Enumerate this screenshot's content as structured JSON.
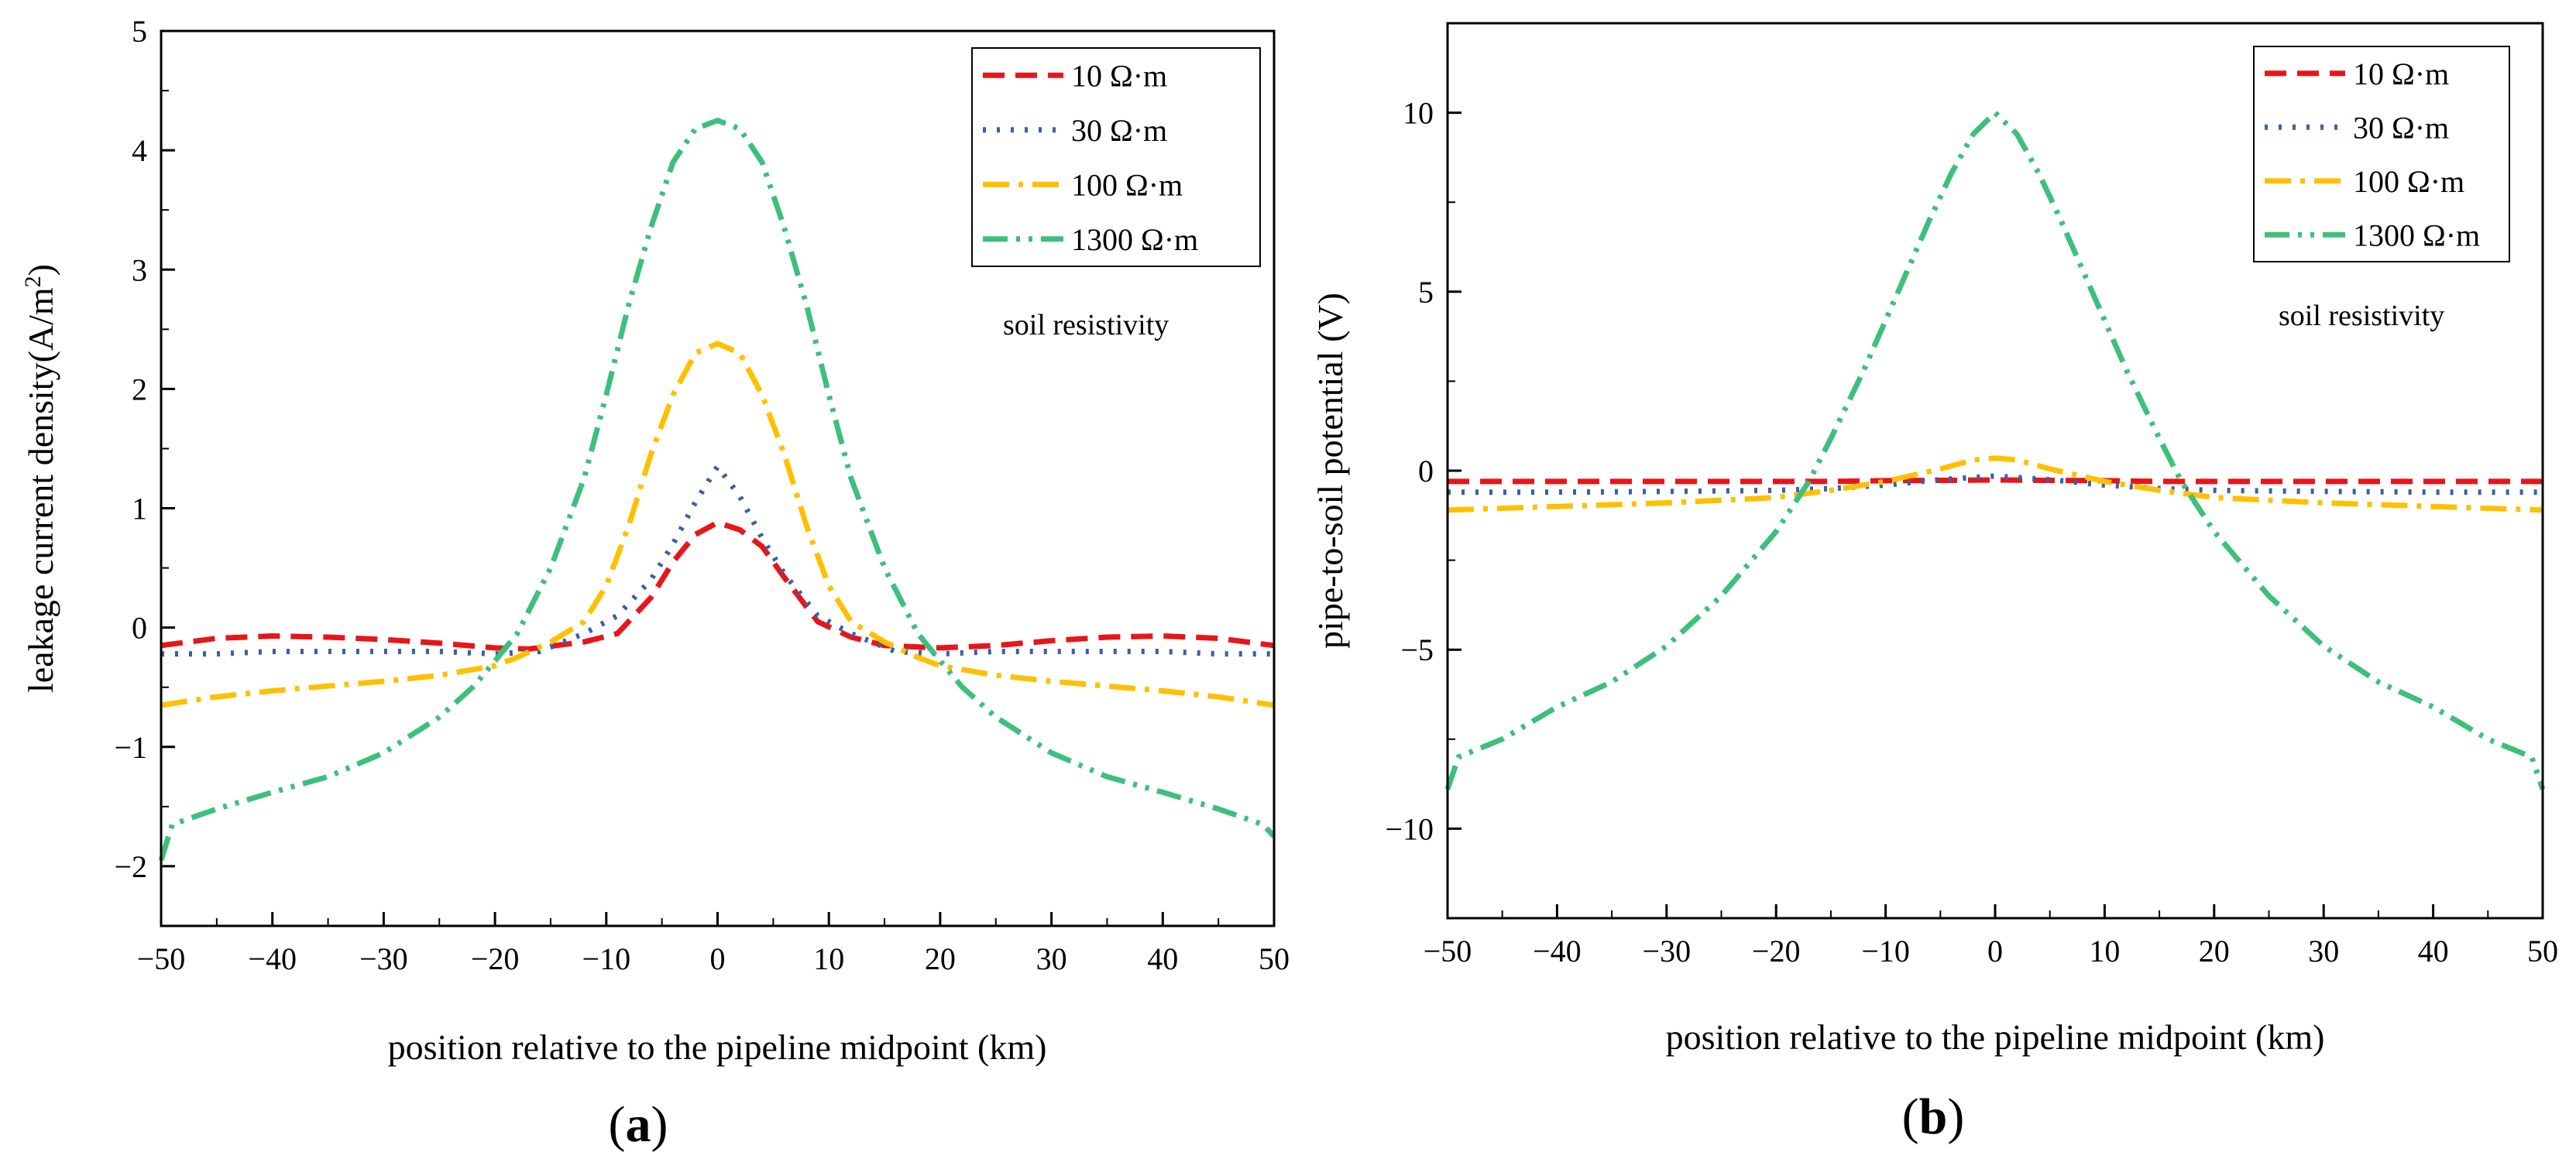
{
  "chart_data": [
    {
      "type": "line",
      "panel": "(a)",
      "panel_letter": "a",
      "xlabel": "position relative to the pipeline midpoint (km)",
      "ylabel_main": "leakage current density(A/m",
      "ylabel_sup": "2",
      "ylabel_end": ")",
      "xlim": [
        -50,
        50
      ],
      "ylim": [
        -2.5,
        5
      ],
      "xticks": [
        -50,
        -40,
        -30,
        -20,
        -10,
        0,
        10,
        20,
        30,
        40,
        50
      ],
      "yticks": [
        -2,
        -1,
        0,
        1,
        2,
        3,
        4,
        5
      ],
      "annotation": "soil resistivity",
      "legend_position": "top-right",
      "series": [
        {
          "name": "10 Ω·m",
          "color": "#e8151b",
          "dash": "dash",
          "x": [
            -50,
            -45,
            -40,
            -35,
            -30,
            -25,
            -20,
            -17,
            -12,
            -9,
            -6,
            -4,
            -2,
            0,
            2,
            4,
            6,
            9,
            12,
            15,
            20,
            25,
            30,
            35,
            40,
            45,
            50
          ],
          "y": [
            -0.15,
            -0.09,
            -0.07,
            -0.08,
            -0.1,
            -0.13,
            -0.17,
            -0.18,
            -0.12,
            -0.05,
            0.25,
            0.55,
            0.78,
            0.88,
            0.82,
            0.68,
            0.42,
            0.05,
            -0.08,
            -0.15,
            -0.17,
            -0.15,
            -0.11,
            -0.08,
            -0.07,
            -0.09,
            -0.15
          ]
        },
        {
          "name": "30 Ω·m",
          "color": "#3a5fa8",
          "dash": "dot",
          "x": [
            -50,
            -45,
            -40,
            -35,
            -30,
            -25,
            -20,
            -16,
            -12,
            -9,
            -6,
            -4,
            -2,
            0,
            2,
            4,
            6,
            9,
            12,
            16,
            20,
            25,
            30,
            35,
            40,
            45,
            50
          ],
          "y": [
            -0.22,
            -0.22,
            -0.2,
            -0.2,
            -0.2,
            -0.2,
            -0.22,
            -0.2,
            -0.05,
            0.1,
            0.4,
            0.7,
            1.05,
            1.35,
            1.1,
            0.75,
            0.45,
            0.1,
            -0.05,
            -0.2,
            -0.22,
            -0.2,
            -0.2,
            -0.2,
            -0.2,
            -0.22,
            -0.22
          ]
        },
        {
          "name": "100 Ω·m",
          "color": "#ffc000",
          "dash": "dashdot",
          "x": [
            -50,
            -45,
            -40,
            -35,
            -30,
            -25,
            -20,
            -18,
            -15,
            -12,
            -10,
            -8,
            -6,
            -4,
            -2,
            0,
            2,
            4,
            6,
            8,
            10,
            12,
            15,
            18,
            20,
            25,
            30,
            35,
            40,
            45,
            50
          ],
          "y": [
            -0.65,
            -0.58,
            -0.53,
            -0.49,
            -0.45,
            -0.4,
            -0.32,
            -0.25,
            -0.12,
            0.05,
            0.35,
            0.85,
            1.45,
            1.95,
            2.3,
            2.38,
            2.3,
            1.95,
            1.45,
            0.85,
            0.35,
            0.05,
            -0.12,
            -0.25,
            -0.32,
            -0.4,
            -0.45,
            -0.49,
            -0.53,
            -0.58,
            -0.65
          ]
        },
        {
          "name": "1300 Ω·m",
          "color": "#3dc07a",
          "dash": "dashdotdot",
          "x": [
            -50,
            -49,
            -45,
            -40,
            -35,
            -30,
            -25,
            -22,
            -20,
            -18,
            -15,
            -12,
            -10,
            -8,
            -6,
            -4,
            -2,
            0,
            2,
            4,
            6,
            8,
            10,
            12,
            15,
            18,
            20,
            22,
            25,
            30,
            35,
            40,
            45,
            49,
            50
          ],
          "y": [
            -1.95,
            -1.65,
            -1.52,
            -1.38,
            -1.25,
            -1.05,
            -0.75,
            -0.5,
            -0.28,
            -0.05,
            0.5,
            1.25,
            1.95,
            2.7,
            3.35,
            3.9,
            4.18,
            4.25,
            4.18,
            3.9,
            3.35,
            2.7,
            1.95,
            1.25,
            0.5,
            -0.05,
            -0.28,
            -0.5,
            -0.75,
            -1.05,
            -1.25,
            -1.38,
            -1.52,
            -1.65,
            -1.75
          ]
        }
      ]
    },
    {
      "type": "line",
      "panel": "(b)",
      "panel_letter": "b",
      "xlabel": "position relative to the pipeline midpoint (km)",
      "ylabel": "pipe-to-soil potential (V)",
      "xlim": [
        -50,
        50
      ],
      "ylim": [
        -12.5,
        12.5
      ],
      "xticks": [
        -50,
        -40,
        -30,
        -20,
        -10,
        0,
        10,
        20,
        30,
        40,
        50
      ],
      "yticks": [
        -10,
        -5,
        0,
        5,
        10
      ],
      "annotation": "soil resistivity",
      "legend_position": "top-right",
      "series": [
        {
          "name": "10 Ω·m",
          "color": "#e8151b",
          "dash": "dash",
          "x": [
            -50,
            -40,
            -30,
            -20,
            -15,
            -10,
            -5,
            0,
            5,
            10,
            15,
            20,
            30,
            40,
            50
          ],
          "y": [
            -0.3,
            -0.3,
            -0.3,
            -0.3,
            -0.3,
            -0.28,
            -0.27,
            -0.26,
            -0.27,
            -0.28,
            -0.3,
            -0.3,
            -0.3,
            -0.3,
            -0.3
          ]
        },
        {
          "name": "30 Ω·m",
          "color": "#3a5fa8",
          "dash": "dot",
          "x": [
            -50,
            -40,
            -30,
            -20,
            -15,
            -10,
            -5,
            0,
            5,
            10,
            15,
            20,
            30,
            40,
            50
          ],
          "y": [
            -0.6,
            -0.6,
            -0.58,
            -0.55,
            -0.5,
            -0.4,
            -0.25,
            -0.15,
            -0.25,
            -0.4,
            -0.5,
            -0.55,
            -0.58,
            -0.6,
            -0.6
          ]
        },
        {
          "name": "100 Ω·m",
          "color": "#ffc000",
          "dash": "dashdot",
          "x": [
            -50,
            -40,
            -30,
            -20,
            -15,
            -10,
            -5,
            -2,
            0,
            2,
            5,
            10,
            15,
            20,
            30,
            40,
            50
          ],
          "y": [
            -1.1,
            -1.0,
            -0.9,
            -0.75,
            -0.55,
            -0.3,
            0.05,
            0.3,
            0.35,
            0.3,
            0.05,
            -0.3,
            -0.55,
            -0.75,
            -0.9,
            -1.0,
            -1.1
          ]
        },
        {
          "name": "1300 Ω·m",
          "color": "#3dc07a",
          "dash": "dashdotdot",
          "x": [
            -50,
            -49,
            -45,
            -40,
            -35,
            -30,
            -25,
            -20,
            -17,
            -15,
            -12,
            -10,
            -8,
            -6,
            -4,
            -2,
            0,
            2,
            4,
            6,
            8,
            10,
            12,
            15,
            17,
            20,
            25,
            30,
            35,
            40,
            45,
            49,
            50
          ],
          "y": [
            -8.9,
            -8.0,
            -7.5,
            -6.6,
            -5.9,
            -4.9,
            -3.5,
            -1.7,
            -0.3,
            0.9,
            2.8,
            4.2,
            5.6,
            7.0,
            8.3,
            9.4,
            10.0,
            9.4,
            8.3,
            7.0,
            5.6,
            4.2,
            2.8,
            0.9,
            -0.3,
            -1.7,
            -3.5,
            -4.9,
            -5.9,
            -6.6,
            -7.5,
            -8.0,
            -8.9
          ]
        }
      ]
    }
  ]
}
